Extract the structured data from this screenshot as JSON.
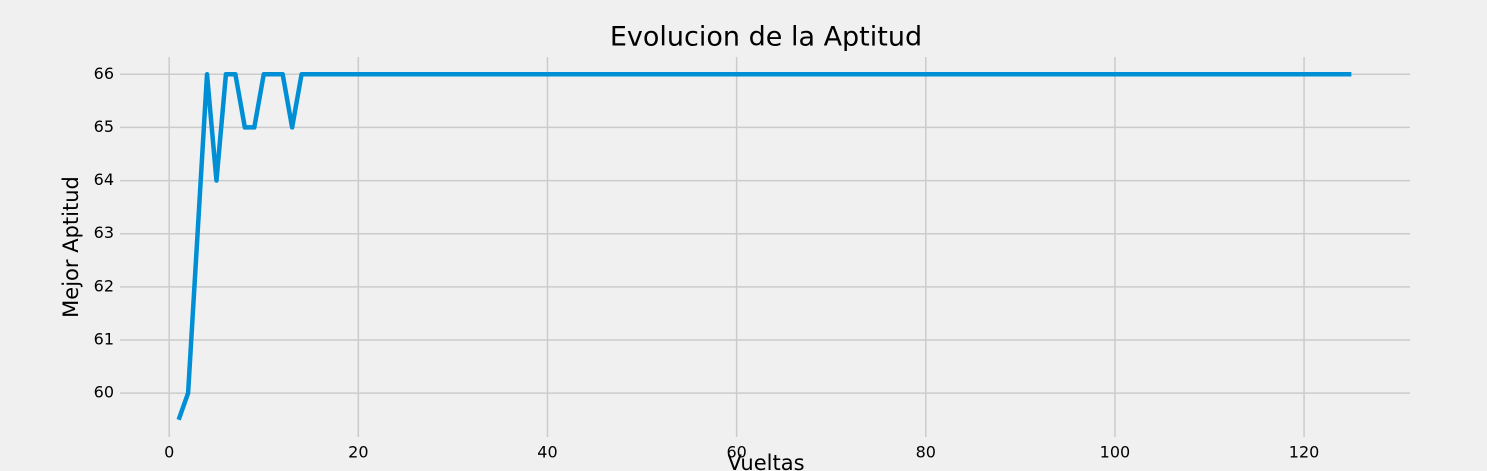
{
  "chart_data": {
    "type": "line",
    "title": "Evolucion de la Aptitud",
    "x_label": "Vueltas",
    "y_label": "Mejor Aptitud",
    "x": [
      1,
      2,
      3,
      4,
      5,
      6,
      7,
      8,
      9,
      10,
      11,
      12,
      13,
      14,
      15,
      16,
      17,
      18,
      19,
      20,
      21,
      22,
      23,
      24,
      25,
      26,
      27,
      28,
      29,
      30,
      31,
      32,
      33,
      34,
      35,
      36,
      37,
      38,
      39,
      40,
      41,
      42,
      43,
      44,
      45,
      46,
      47,
      48,
      49,
      50,
      51,
      52,
      53,
      54,
      55,
      56,
      57,
      58,
      59,
      60,
      61,
      62,
      63,
      64,
      65,
      66,
      67,
      68,
      69,
      70,
      71,
      72,
      73,
      74,
      75,
      76,
      77,
      78,
      79,
      80,
      81,
      82,
      83,
      84,
      85,
      86,
      87,
      88,
      89,
      90,
      91,
      92,
      93,
      94,
      95,
      96,
      97,
      98,
      99,
      100,
      101,
      102,
      103,
      104,
      105,
      106,
      107,
      108,
      109,
      110,
      111,
      112,
      113,
      114,
      115,
      116,
      117,
      118,
      119,
      120,
      121,
      122,
      123,
      124,
      125
    ],
    "series": [
      {
        "color": "#008fd5",
        "values": [
          59.5,
          60,
          63,
          66,
          64,
          66,
          66,
          65,
          65,
          66,
          66,
          66,
          65,
          66,
          66,
          66,
          66,
          66,
          66,
          66,
          66,
          66,
          66,
          66,
          66,
          66,
          66,
          66,
          66,
          66,
          66,
          66,
          66,
          66,
          66,
          66,
          66,
          66,
          66,
          66,
          66,
          66,
          66,
          66,
          66,
          66,
          66,
          66,
          66,
          66,
          66,
          66,
          66,
          66,
          66,
          66,
          66,
          66,
          66,
          66,
          66,
          66,
          66,
          66,
          66,
          66,
          66,
          66,
          66,
          66,
          66,
          66,
          66,
          66,
          66,
          66,
          66,
          66,
          66,
          66,
          66,
          66,
          66,
          66,
          66,
          66,
          66,
          66,
          66,
          66,
          66,
          66,
          66,
          66,
          66,
          66,
          66,
          66,
          66,
          66,
          66,
          66,
          66,
          66,
          66,
          66,
          66,
          66,
          66,
          66,
          66,
          66,
          66,
          66,
          66,
          66,
          66,
          66,
          66,
          66,
          66,
          66,
          66,
          66,
          66
        ]
      }
    ],
    "xlim": [
      -5.2,
      131.2
    ],
    "ylim": [
      59.175,
      66.325
    ],
    "xticks": [
      0,
      20,
      40,
      60,
      80,
      100,
      120
    ],
    "yticks": [
      60,
      61,
      62,
      63,
      64,
      65,
      66
    ],
    "grid": true
  }
}
